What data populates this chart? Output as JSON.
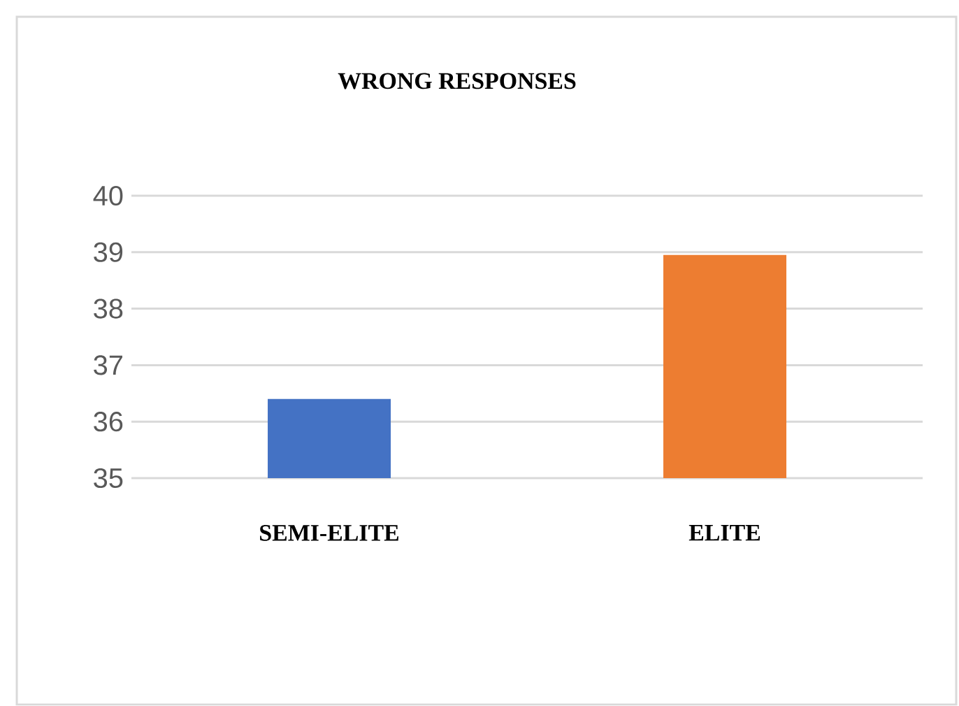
{
  "chart_data": {
    "type": "bar",
    "title": "WRONG RESPONSES",
    "categories": [
      "SEMI-ELITE",
      "ELITE"
    ],
    "values": [
      36.4,
      38.95
    ],
    "colors": [
      "#4472c4",
      "#ed7d31"
    ],
    "ylim": [
      35,
      40
    ],
    "yticks": [
      35,
      36,
      37,
      38,
      39,
      40
    ],
    "grid": "y"
  }
}
